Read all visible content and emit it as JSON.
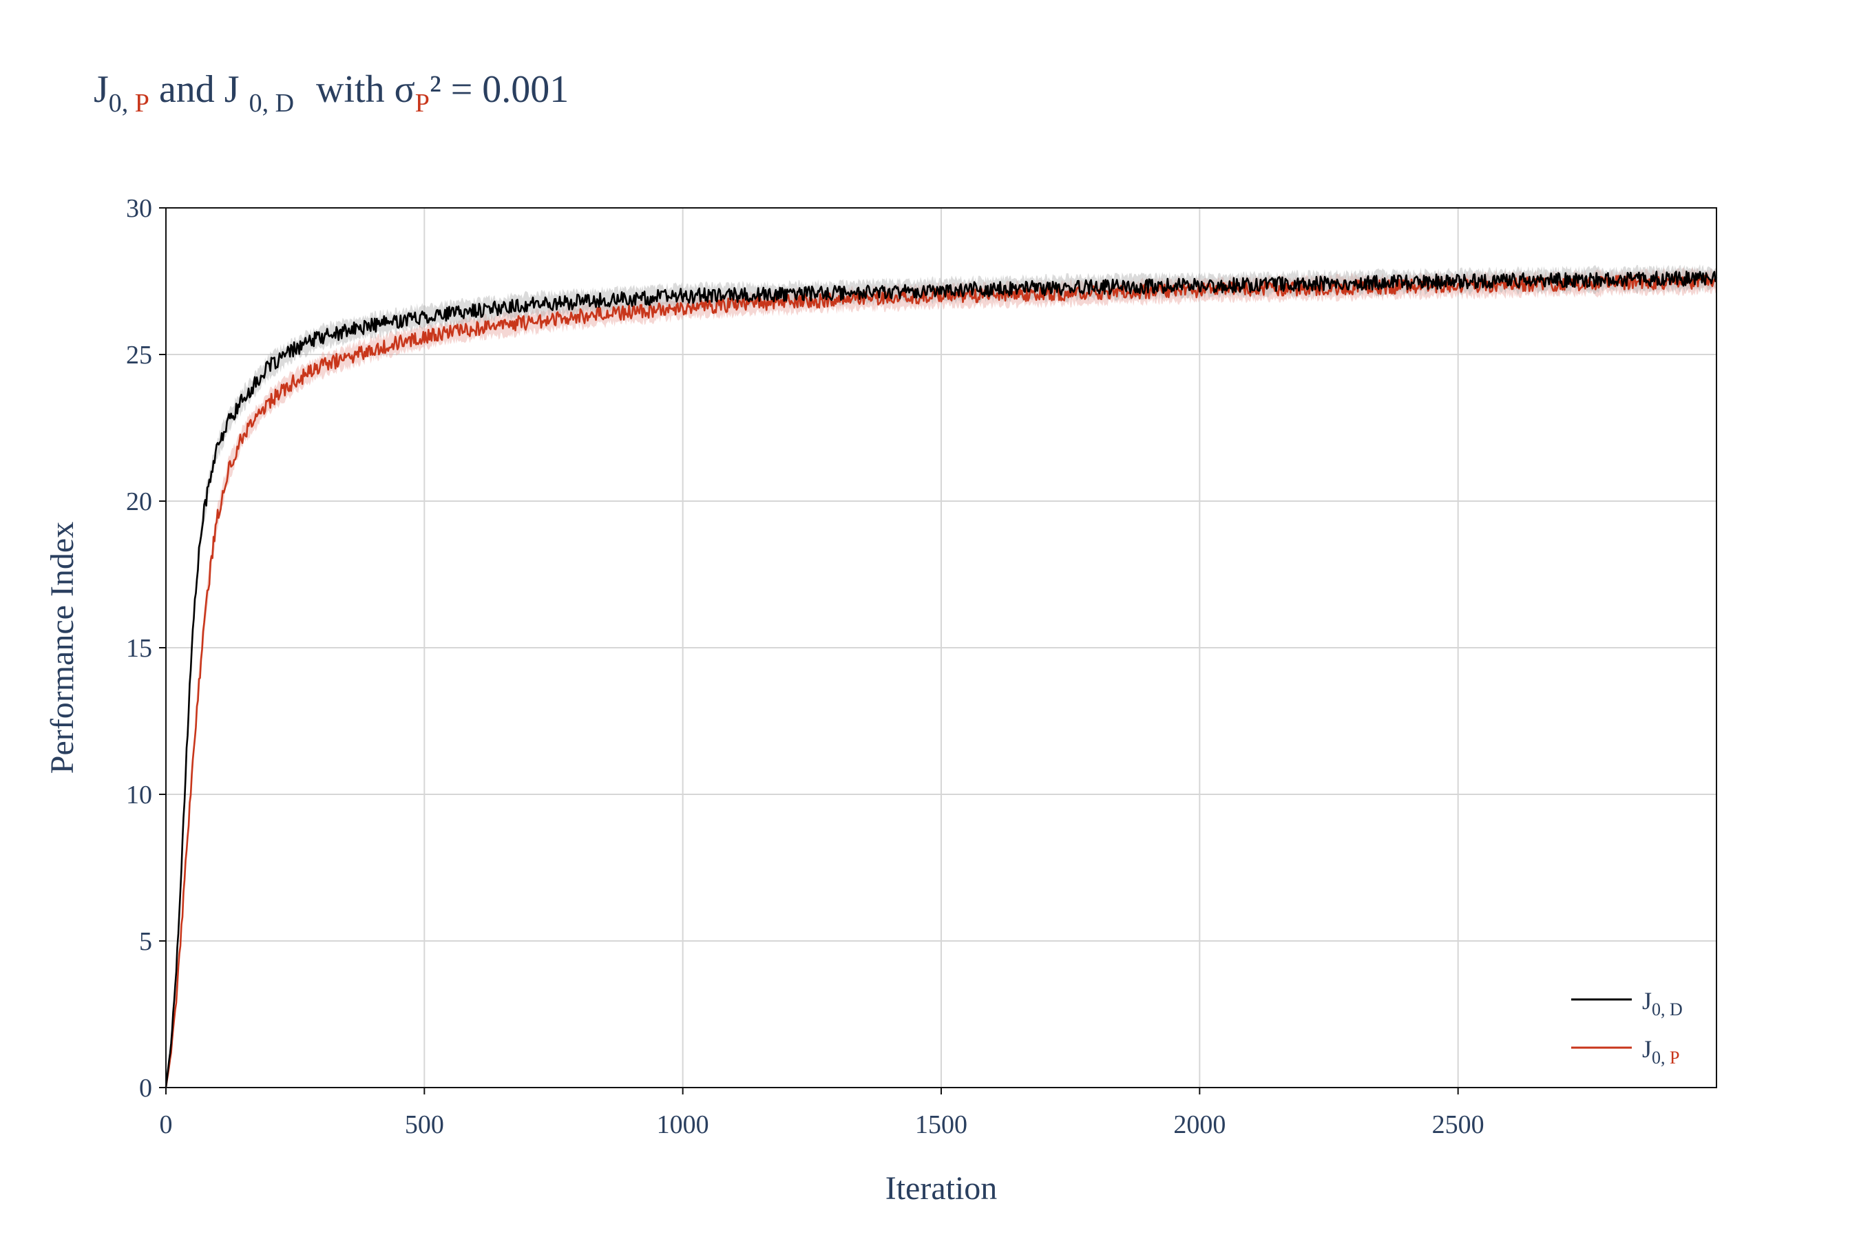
{
  "chart_data": {
    "type": "line",
    "title": {
      "j": "J",
      "sub1_a": "0, ",
      "sub1_b": "P",
      "mid": " and J ",
      "sub2": "0, D",
      "with": " with σ",
      "sigma_sub": "P",
      "tail": "² = 0.001"
    },
    "xlabel": "Iteration",
    "ylabel": "Performance Index",
    "xlim": [
      0,
      3000
    ],
    "ylim": [
      0,
      30
    ],
    "x_ticks": [
      0,
      500,
      1000,
      1500,
      2000,
      2500
    ],
    "x_tick_labels": [
      "0",
      "500",
      "1000",
      "1500",
      "2000",
      "2500"
    ],
    "y_ticks": [
      0,
      5,
      10,
      15,
      20,
      25,
      30
    ],
    "y_tick_labels": [
      "0",
      "5",
      "10",
      "15",
      "20",
      "25",
      "30"
    ],
    "grid": true,
    "legend_position": "bottom-right",
    "series": [
      {
        "name_j": "J",
        "name_sub_a": "0, D",
        "name_sub_b": "",
        "color": "#000000",
        "band_color": "#b0b0b0",
        "noise": 0.25,
        "band": 0.35,
        "x": [
          0,
          10,
          20,
          30,
          40,
          50,
          60,
          70,
          80,
          90,
          100,
          120,
          150,
          200,
          250,
          300,
          400,
          500,
          600,
          700,
          800,
          1000,
          1200,
          1500,
          1800,
          2000,
          2500,
          3000
        ],
        "y": [
          0,
          1.5,
          4,
          7.5,
          11.5,
          15,
          17.5,
          19.2,
          20.3,
          21.2,
          21.8,
          22.7,
          23.5,
          24.6,
          25.2,
          25.6,
          26.0,
          26.3,
          26.5,
          26.7,
          26.8,
          27.0,
          27.05,
          27.2,
          27.3,
          27.35,
          27.5,
          27.6
        ]
      },
      {
        "name_j": "J",
        "name_sub_a": "0, ",
        "name_sub_b": "P",
        "color": "#c8361b",
        "band_color": "#e8a7a0",
        "noise": 0.25,
        "band": 0.35,
        "x": [
          0,
          10,
          20,
          30,
          40,
          50,
          60,
          70,
          80,
          90,
          100,
          120,
          150,
          200,
          250,
          300,
          400,
          500,
          600,
          700,
          800,
          1000,
          1200,
          1500,
          1800,
          2000,
          2500,
          3000
        ],
        "y": [
          0,
          1.2,
          3.0,
          5.5,
          8.0,
          10.5,
          13.0,
          15.0,
          16.8,
          18.3,
          19.5,
          21.0,
          22.3,
          23.4,
          24.1,
          24.6,
          25.2,
          25.6,
          25.9,
          26.1,
          26.3,
          26.6,
          26.8,
          27.0,
          27.1,
          27.2,
          27.35,
          27.5
        ]
      }
    ]
  }
}
